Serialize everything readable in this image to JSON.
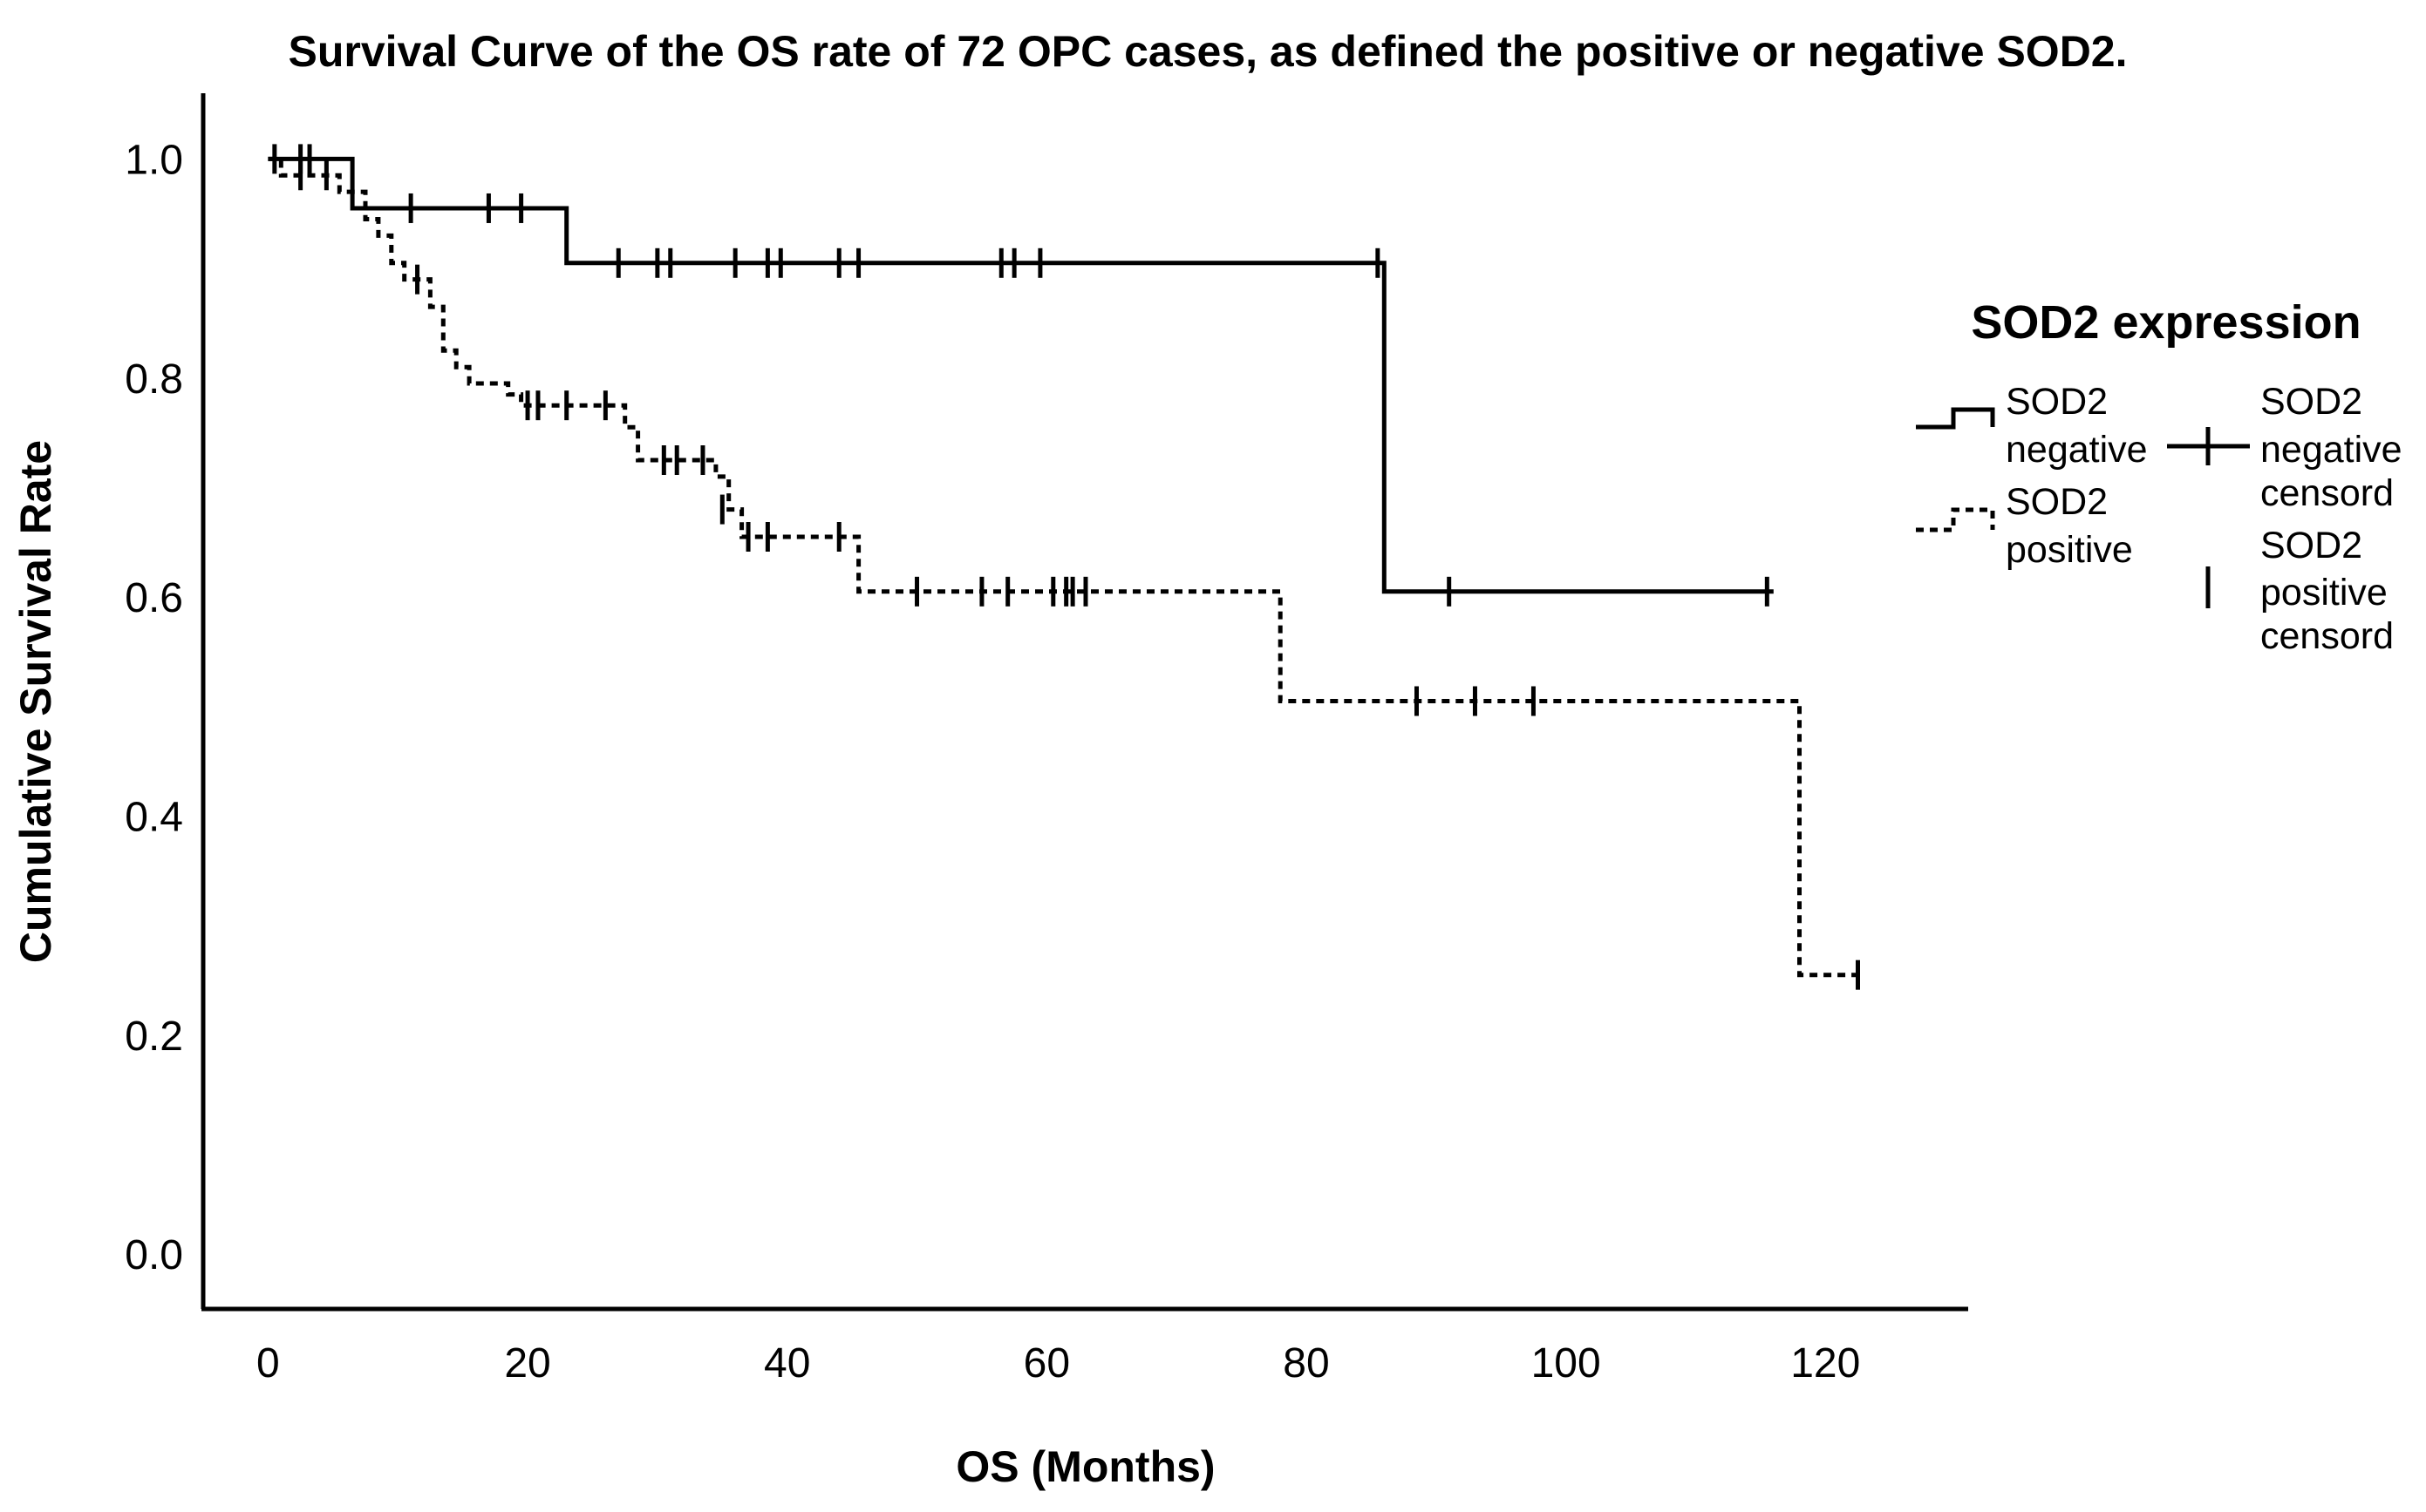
{
  "chart_data": {
    "type": "line",
    "title": "Survival Curve of the OS rate of 72 OPC cases, as defined the positive or negative SOD2.",
    "xlabel": "OS (Months)",
    "ylabel": "Cumulative Survival Rate",
    "xlim": [
      -5,
      131
    ],
    "ylim": [
      -0.05,
      1.06
    ],
    "xticks": [
      0,
      20,
      40,
      60,
      80,
      100,
      120
    ],
    "yticks": [
      0.0,
      0.2,
      0.4,
      0.6,
      0.8,
      1.0
    ],
    "xtick_labels": [
      "0",
      "20",
      "40",
      "60",
      "80",
      "100",
      "120"
    ],
    "ytick_labels": [
      "0.0",
      "0.2",
      "0.4",
      "0.6",
      "0.8",
      "1.0"
    ],
    "grid": false,
    "legend_position": "right",
    "legend": {
      "title": "SOD2 expression",
      "entries": [
        {
          "id": "neg",
          "line1": "SOD2",
          "line2": "negative"
        },
        {
          "id": "pos",
          "line1": "SOD2",
          "line2": "positive"
        },
        {
          "id": "neg-cens",
          "line1": "SOD2",
          "line2": "negative",
          "line3": "censord"
        },
        {
          "id": "pos-cens",
          "line1": "SOD2",
          "line2": "positive",
          "line3": "censord"
        }
      ]
    },
    "series": [
      {
        "name": "SOD2 negative",
        "style": "solid",
        "steps": [
          [
            0,
            1.0
          ],
          [
            6.5,
            0.955
          ],
          [
            23,
            0.905
          ],
          [
            86,
            0.605
          ],
          [
            116,
            0.605
          ]
        ],
        "censored": [
          [
            0.5,
            1.0
          ],
          [
            2.5,
            1.0
          ],
          [
            3.2,
            1.0
          ],
          [
            11,
            0.955
          ],
          [
            17,
            0.955
          ],
          [
            19.5,
            0.955
          ],
          [
            27,
            0.905
          ],
          [
            30,
            0.905
          ],
          [
            31,
            0.905
          ],
          [
            36,
            0.905
          ],
          [
            38.5,
            0.905
          ],
          [
            39.5,
            0.905
          ],
          [
            44,
            0.905
          ],
          [
            45.5,
            0.905
          ],
          [
            56.5,
            0.905
          ],
          [
            57.5,
            0.905
          ],
          [
            59.5,
            0.905
          ],
          [
            85.5,
            0.905
          ],
          [
            91,
            0.605
          ],
          [
            115.5,
            0.605
          ]
        ]
      },
      {
        "name": "SOD2 positive",
        "style": "dashed",
        "steps": [
          [
            0,
            1.0
          ],
          [
            1,
            0.985
          ],
          [
            5.5,
            0.97
          ],
          [
            7.5,
            0.945
          ],
          [
            8.5,
            0.93
          ],
          [
            9.5,
            0.905
          ],
          [
            10.5,
            0.89
          ],
          [
            12.5,
            0.865
          ],
          [
            13.5,
            0.825
          ],
          [
            14.5,
            0.81
          ],
          [
            15.5,
            0.795
          ],
          [
            18.5,
            0.785
          ],
          [
            19.5,
            0.775
          ],
          [
            27.5,
            0.755
          ],
          [
            28.5,
            0.725
          ],
          [
            34.5,
            0.71
          ],
          [
            35.5,
            0.68
          ],
          [
            36.5,
            0.655
          ],
          [
            45.5,
            0.605
          ],
          [
            78,
            0.505
          ],
          [
            118,
            0.255
          ],
          [
            123,
            0.255
          ]
        ],
        "censored": [
          [
            2.5,
            0.985
          ],
          [
            4.5,
            0.985
          ],
          [
            11.5,
            0.89
          ],
          [
            20,
            0.775
          ],
          [
            20.8,
            0.775
          ],
          [
            23,
            0.775
          ],
          [
            26,
            0.775
          ],
          [
            30.5,
            0.725
          ],
          [
            31.5,
            0.725
          ],
          [
            33.5,
            0.725
          ],
          [
            35,
            0.68
          ],
          [
            37,
            0.655
          ],
          [
            38.5,
            0.655
          ],
          [
            44,
            0.655
          ],
          [
            50,
            0.605
          ],
          [
            55,
            0.605
          ],
          [
            57,
            0.605
          ],
          [
            60.5,
            0.605
          ],
          [
            61.5,
            0.605
          ],
          [
            62,
            0.605
          ],
          [
            63,
            0.605
          ],
          [
            88.5,
            0.505
          ],
          [
            93,
            0.505
          ],
          [
            97.5,
            0.505
          ],
          [
            122.5,
            0.255
          ]
        ]
      }
    ]
  }
}
